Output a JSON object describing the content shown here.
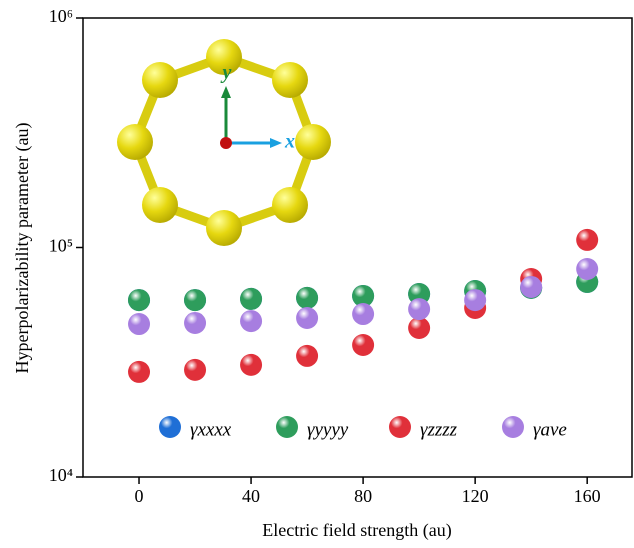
{
  "chart_data": {
    "type": "scatter",
    "xlabel": "Electric field strength (au)",
    "ylabel": "Hyperpolarizability parameter (au)",
    "annotations": [
      "y",
      "x"
    ],
    "xlim": [
      -20,
      176
    ],
    "xticks": [
      0,
      40,
      80,
      120,
      160
    ],
    "ylim": [
      10000,
      1000000
    ],
    "log_y": true,
    "yticks": [
      {
        "value": 10000,
        "label": "10⁴"
      },
      {
        "value": 100000,
        "label": "10⁵"
      },
      {
        "value": 1000000,
        "label": "10⁶"
      }
    ],
    "x": [
      0,
      20,
      40,
      60,
      80,
      100,
      120,
      140,
      160
    ],
    "series": [
      {
        "name": "γxxxx",
        "color": "#1f6fd6",
        "values": [
          59000,
          59000,
          59700,
          60300,
          61500,
          62700,
          64600,
          66700,
          70800
        ]
      },
      {
        "name": "γyyyy",
        "color": "#2e9d5c",
        "values": [
          59000,
          59000,
          59700,
          60300,
          61500,
          62700,
          64600,
          66700,
          70800
        ]
      },
      {
        "name": "γzzzz",
        "color": "#e0303a",
        "values": [
          28700,
          29300,
          30800,
          33700,
          37600,
          44600,
          54500,
          72900,
          107900
        ]
      },
      {
        "name": "γave",
        "color": "#a77ee0",
        "values": [
          46400,
          46900,
          47800,
          49300,
          51300,
          53900,
          59000,
          67300,
          80600
        ]
      }
    ]
  }
}
